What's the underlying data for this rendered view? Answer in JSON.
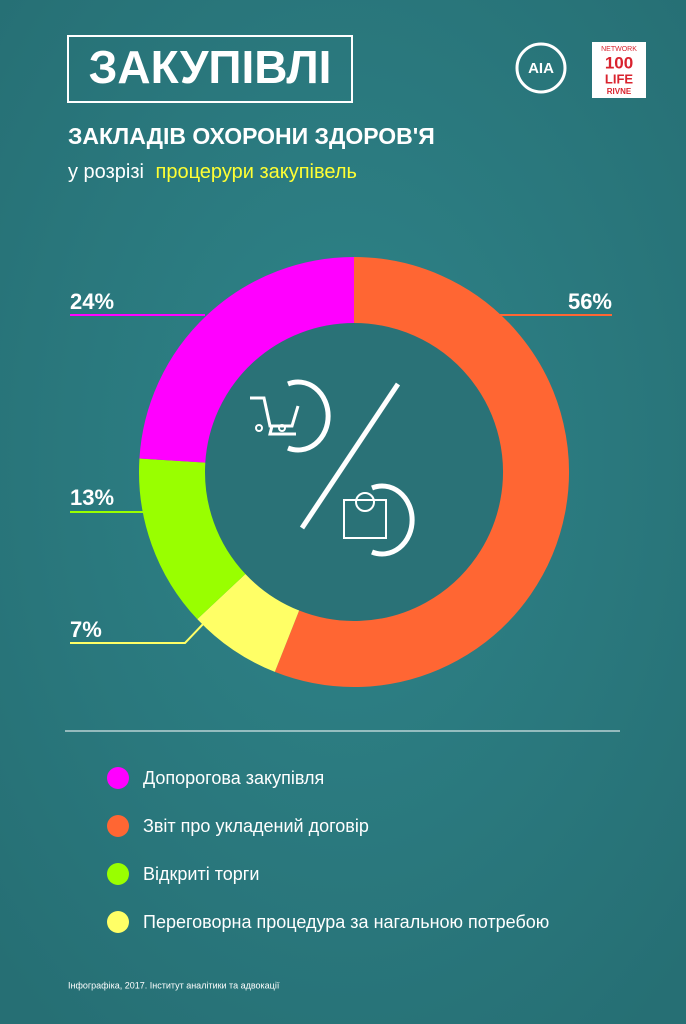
{
  "chart_data": {
    "type": "donut",
    "title": "ЗАКУПІВЛІ",
    "subtitle": "ЗАКЛАДІВ ОХОРОНИ ЗДОРОВ'Я",
    "subtitle2_prefix": "у розрізі",
    "subtitle2_highlight": "процерури закупівель",
    "series": [
      {
        "name": "Допорогова закупівля",
        "color": "#ff00ff",
        "values": [
          24
        ],
        "value_labels": [
          "24%"
        ]
      },
      {
        "name": "Звіт про укладений договір",
        "color": "#ff6633",
        "values": [
          56
        ],
        "value_labels": [
          "56%"
        ]
      },
      {
        "name": "Відкриті торги",
        "color": "#99ff00",
        "values": [
          13
        ],
        "value_labels": [
          "13%"
        ]
      },
      {
        "name": "Переговорна процедура за нагальною потребою",
        "color": "#ffff66",
        "values": [
          7
        ],
        "value_labels": [
          "7%"
        ]
      }
    ],
    "source": "Інфографіка, 2017. Інститут аналітики та адвокації",
    "logos": {
      "aia": "AIA",
      "network": "NETWORK",
      "number": "100",
      "life": "LIFE",
      "city": "RIVNE"
    }
  }
}
